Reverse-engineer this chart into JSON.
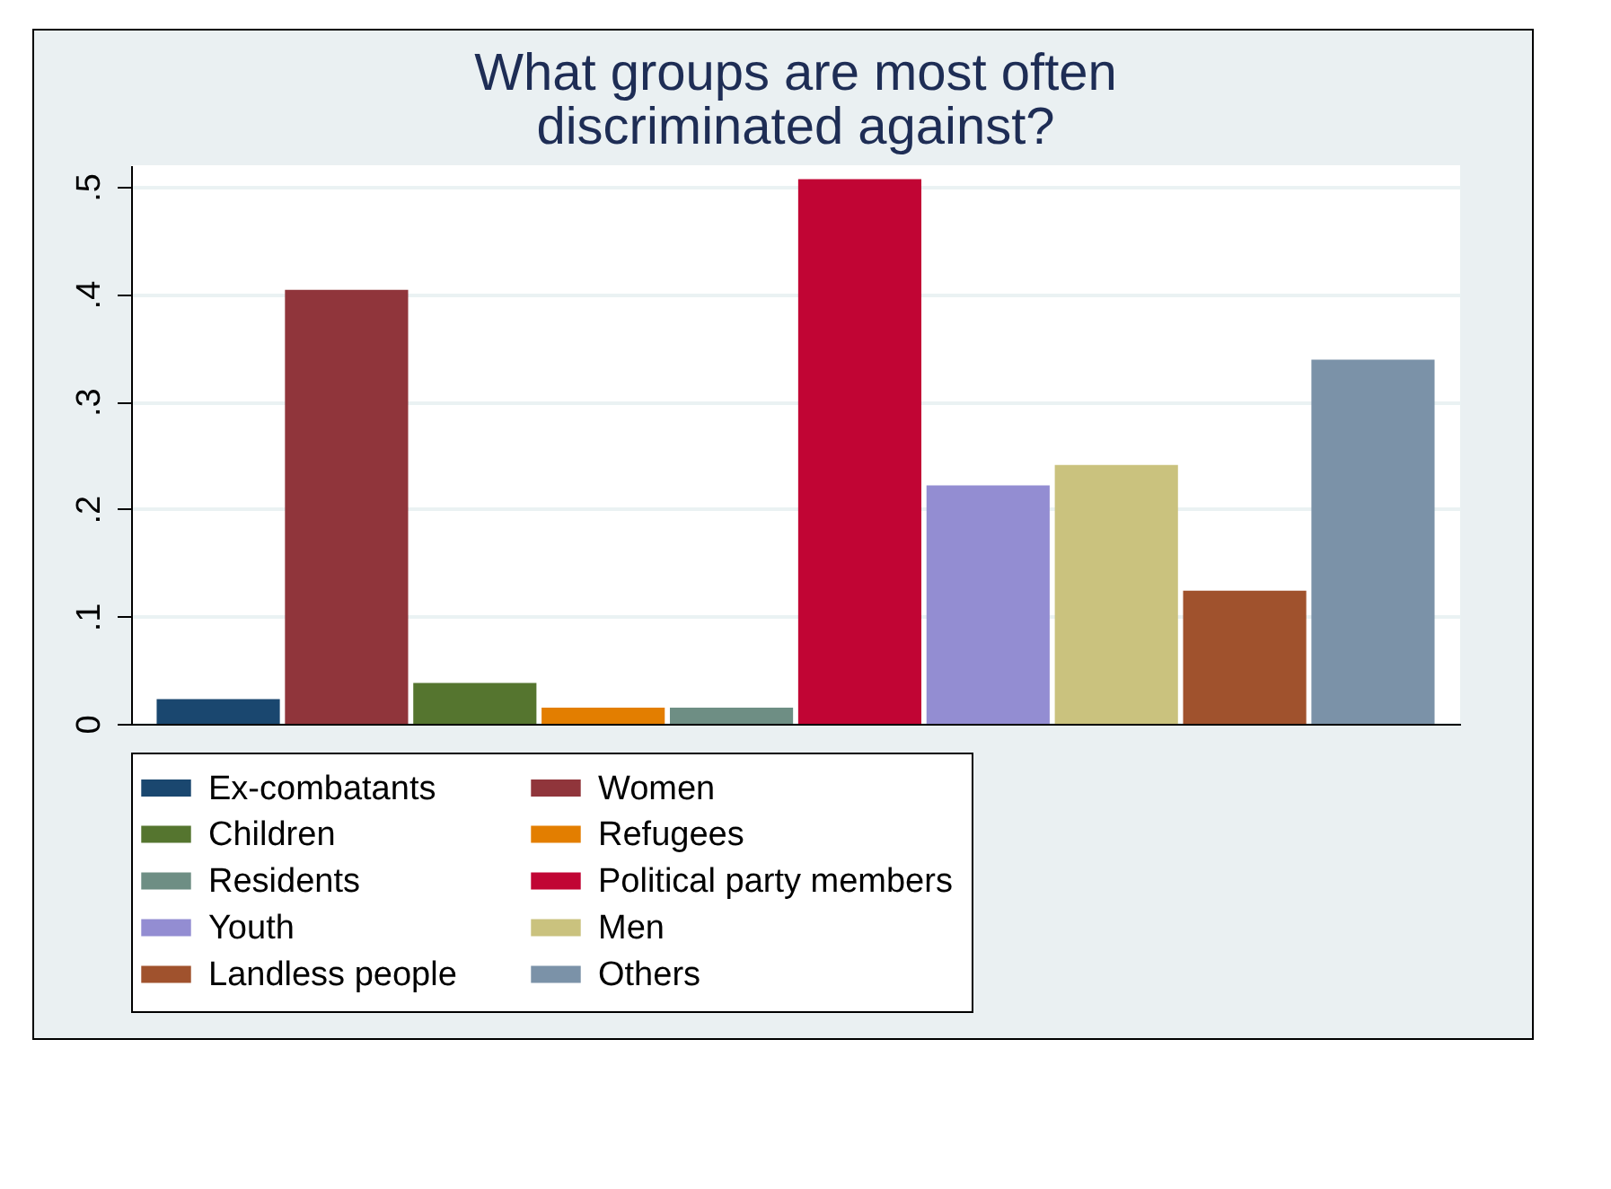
{
  "chart_data": {
    "type": "bar",
    "title": "What groups are most often\ndiscriminated against?",
    "categories": [
      null
    ],
    "series": [
      {
        "name": "Ex-combatants",
        "color": "#1a476f",
        "values": [
          0.023
        ]
      },
      {
        "name": "Women",
        "color": "#90353b",
        "values": [
          0.404
        ]
      },
      {
        "name": "Children",
        "color": "#55752f",
        "values": [
          0.038
        ]
      },
      {
        "name": "Refugees",
        "color": "#e37e00",
        "values": [
          0.015
        ]
      },
      {
        "name": "Residents",
        "color": "#6e8e84",
        "values": [
          0.015
        ]
      },
      {
        "name": "Political party members",
        "color": "#c10534",
        "values": [
          0.507
        ]
      },
      {
        "name": "Youth",
        "color": "#938dd2",
        "values": [
          0.222
        ]
      },
      {
        "name": "Men",
        "color": "#cac27e",
        "values": [
          0.241
        ]
      },
      {
        "name": "Landless people",
        "color": "#a0522d",
        "values": [
          0.124
        ]
      },
      {
        "name": "Others",
        "color": "#7b92a8",
        "values": [
          0.339
        ]
      }
    ],
    "ylim": [
      0,
      0.52
    ],
    "yticks": [
      0,
      {
        "value": 0.1,
        "label": ".1"
      },
      {
        "value": 0.2,
        "label": ".2"
      },
      {
        "value": 0.3,
        "label": ".3"
      },
      {
        "value": 0.4,
        "label": ".4"
      },
      {
        "value": 0.5,
        "label": ".5"
      }
    ],
    "grid": "y",
    "legend": "bottom"
  }
}
